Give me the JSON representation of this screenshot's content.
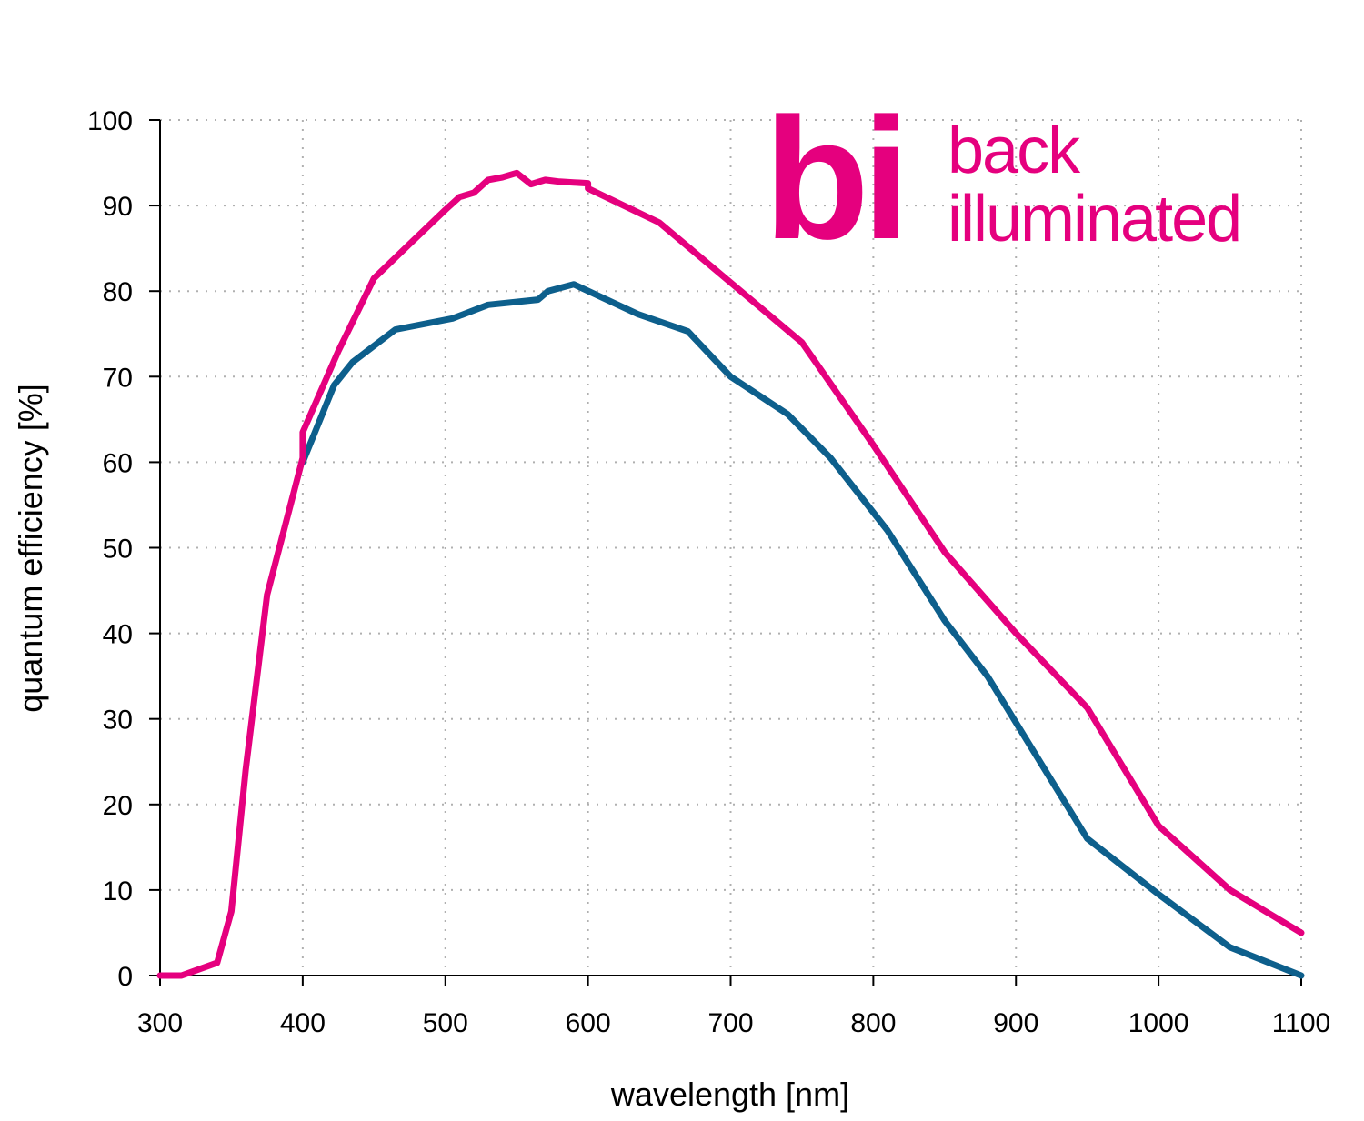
{
  "chart_data": {
    "type": "line",
    "xlabel": "wavelength [nm]",
    "ylabel": "quantum efficiency [%]",
    "xlim": [
      300,
      1100
    ],
    "ylim": [
      0,
      100
    ],
    "xticks": [
      300,
      400,
      500,
      600,
      700,
      800,
      900,
      1000,
      1100
    ],
    "yticks": [
      0,
      10,
      20,
      30,
      40,
      50,
      60,
      70,
      80,
      90,
      100
    ],
    "grid": true,
    "series": [
      {
        "color": "#e5007e",
        "points": [
          [
            300,
            0
          ],
          [
            315,
            0
          ],
          [
            340,
            1.5
          ],
          [
            350,
            7.5
          ],
          [
            360,
            24
          ],
          [
            375,
            44.5
          ],
          [
            400,
            60.5
          ],
          [
            400,
            63.5
          ],
          [
            425,
            73
          ],
          [
            450,
            81.5
          ],
          [
            475,
            85.5
          ],
          [
            500,
            89.5
          ],
          [
            510,
            91
          ],
          [
            520,
            91.5
          ],
          [
            530,
            93
          ],
          [
            540,
            93.3
          ],
          [
            550,
            93.8
          ],
          [
            560,
            92.5
          ],
          [
            570,
            93
          ],
          [
            580,
            92.8
          ],
          [
            590,
            92.7
          ],
          [
            600,
            92.6
          ],
          [
            600,
            92
          ],
          [
            650,
            88
          ],
          [
            700,
            81
          ],
          [
            750,
            74
          ],
          [
            800,
            62
          ],
          [
            850,
            49.5
          ],
          [
            900,
            40
          ],
          [
            950,
            31.3
          ],
          [
            1000,
            17.5
          ],
          [
            1050,
            10
          ],
          [
            1100,
            5
          ]
        ]
      },
      {
        "color": "#0d5f8c",
        "points": [
          [
            400,
            60
          ],
          [
            422,
            69
          ],
          [
            435,
            71.7
          ],
          [
            465,
            75.5
          ],
          [
            505,
            76.8
          ],
          [
            530,
            78.4
          ],
          [
            565,
            79
          ],
          [
            572,
            80
          ],
          [
            590,
            80.8
          ],
          [
            635,
            77.3
          ],
          [
            670,
            75.3
          ],
          [
            700,
            70
          ],
          [
            740,
            65.6
          ],
          [
            770,
            60.5
          ],
          [
            810,
            52
          ],
          [
            850,
            41.5
          ],
          [
            880,
            35
          ],
          [
            950,
            16
          ],
          [
            1000,
            9.5
          ],
          [
            1050,
            3.3
          ],
          [
            1100,
            0
          ]
        ]
      }
    ]
  },
  "logo": {
    "mark": "bi",
    "line1": "back",
    "line2": "illuminated",
    "color": "#e5007e"
  }
}
